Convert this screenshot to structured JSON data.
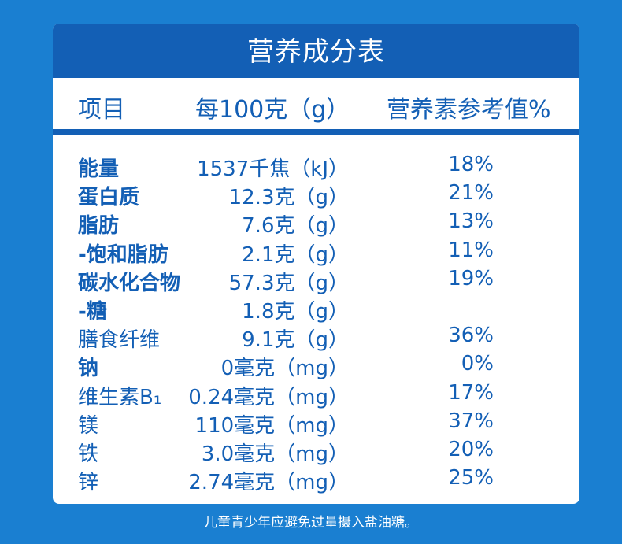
{
  "title": "营养成分表",
  "header": {
    "item": "项目",
    "per100": "每100克（g）",
    "nrv": "营养素参考值%"
  },
  "rows": [
    {
      "name": "能量",
      "amount": "1537千焦（kJ）",
      "nrv": "18%",
      "bold": true
    },
    {
      "name": "蛋白质",
      "amount": "12.3克（g）",
      "nrv": "21%",
      "bold": true
    },
    {
      "name": "脂肪",
      "amount": "7.6克（g）",
      "nrv": "13%",
      "bold": true
    },
    {
      "name": "-饱和脂肪",
      "amount": "2.1克（g）",
      "nrv": "11%",
      "bold": true
    },
    {
      "name": "碳水化合物",
      "amount": "57.3克（g）",
      "nrv": "19%",
      "bold": true
    },
    {
      "name": "-糖",
      "amount": "1.8克（g）",
      "nrv": "",
      "bold": true
    },
    {
      "name": "膳食纤维",
      "amount": "9.1克（g）",
      "nrv": "36%",
      "bold": false
    },
    {
      "name": "钠",
      "amount": "0毫克（mg）",
      "nrv": "0%",
      "bold": true
    },
    {
      "name": "维生素B₁",
      "amount": "0.24毫克（mg）",
      "nrv": "17%",
      "bold": false
    },
    {
      "name": "镁",
      "amount": "110毫克（mg）",
      "nrv": "37%",
      "bold": false
    },
    {
      "name": "铁",
      "amount": "3.0毫克（mg）",
      "nrv": "20%",
      "bold": false
    },
    {
      "name": "锌",
      "amount": "2.74毫克（mg）",
      "nrv": "25%",
      "bold": false
    }
  ],
  "footer": "儿童青少年应避免过量摄入盐油糖。",
  "colors": {
    "background": "#1a7fd1",
    "title_bar": "#135fb5",
    "text": "#135fb5"
  }
}
